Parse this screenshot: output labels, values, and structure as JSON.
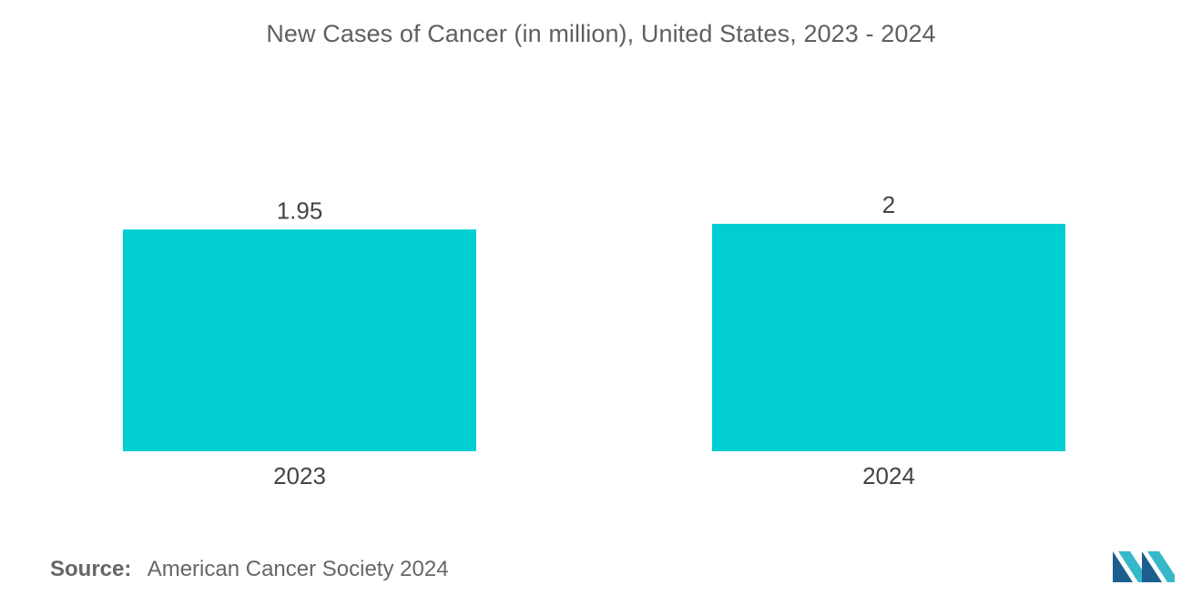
{
  "chart_data": {
    "type": "bar",
    "title": "New Cases of Cancer (in million), United States, 2023 - 2024",
    "categories": [
      "2023",
      "2024"
    ],
    "values": [
      1.95,
      2
    ],
    "value_labels": [
      "1.95",
      "2"
    ],
    "xlabel": "",
    "ylabel": "",
    "ylim": [
      0,
      2
    ],
    "grid": false,
    "legend": "none",
    "bar_color": "#00CED1"
  },
  "source": {
    "label": "Source:",
    "text": "American Cancer Society 2024"
  },
  "colors": {
    "bar": "#00CED1",
    "logo_dark": "#1c5f8f",
    "logo_light": "#35b8c9"
  }
}
